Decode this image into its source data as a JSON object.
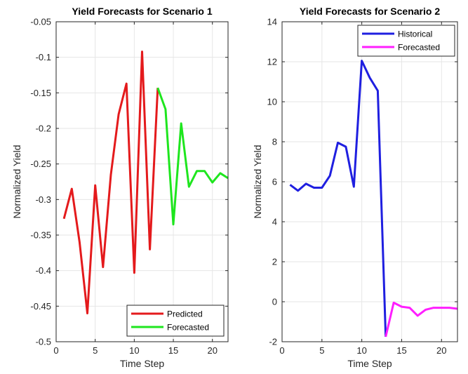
{
  "chart_data": [
    {
      "type": "line",
      "title": "Yield Forecasts for Scenario 1",
      "xlabel": "Time Step",
      "ylabel": "Normalized Yield",
      "xlim": [
        0,
        22
      ],
      "ylim": [
        -0.5,
        -0.05
      ],
      "xticks": [
        0,
        5,
        10,
        15,
        20
      ],
      "yticks": [
        -0.5,
        -0.45,
        -0.4,
        -0.35,
        -0.3,
        -0.25,
        -0.2,
        -0.15,
        -0.1,
        -0.05
      ],
      "grid": true,
      "legend_position": "bottom-right",
      "series": [
        {
          "name": "Predicted",
          "color": "#e41a1c",
          "x": [
            1,
            2,
            3,
            4,
            5,
            6,
            7,
            8,
            9,
            10,
            11,
            12,
            13
          ],
          "y": [
            -0.327,
            -0.285,
            -0.36,
            -0.46,
            -0.28,
            -0.395,
            -0.265,
            -0.18,
            -0.137,
            -0.403,
            -0.092,
            -0.37,
            -0.143
          ]
        },
        {
          "name": "Forecasted",
          "color": "#1ee61e",
          "x": [
            13,
            14,
            15,
            16,
            17,
            18,
            19,
            20,
            21,
            22
          ],
          "y": [
            -0.143,
            -0.173,
            -0.335,
            -0.193,
            -0.282,
            -0.26,
            -0.26,
            -0.276,
            -0.263,
            -0.27
          ]
        }
      ]
    },
    {
      "type": "line",
      "title": "Yield Forecasts for Scenario 2",
      "xlabel": "Time Step",
      "ylabel": "Normalized Yield",
      "xlim": [
        0,
        22
      ],
      "ylim": [
        -2,
        14
      ],
      "xticks": [
        0,
        5,
        10,
        15,
        20
      ],
      "yticks": [
        -2,
        0,
        2,
        4,
        6,
        8,
        10,
        12,
        14
      ],
      "grid": true,
      "legend_position": "top-right",
      "series": [
        {
          "name": "Historical",
          "color": "#1f1fe0",
          "x": [
            1,
            2,
            3,
            4,
            5,
            6,
            7,
            8,
            9,
            10,
            11,
            12,
            13
          ],
          "y": [
            5.85,
            5.55,
            5.9,
            5.7,
            5.7,
            6.3,
            7.95,
            7.75,
            5.75,
            12.05,
            11.2,
            10.55,
            -1.75
          ]
        },
        {
          "name": "Forecasted",
          "color": "#ff1eff",
          "x": [
            13,
            14,
            15,
            16,
            17,
            18,
            19,
            20,
            21,
            22
          ],
          "y": [
            -1.75,
            -0.05,
            -0.25,
            -0.3,
            -0.7,
            -0.4,
            -0.3,
            -0.3,
            -0.3,
            -0.35
          ]
        }
      ]
    }
  ]
}
